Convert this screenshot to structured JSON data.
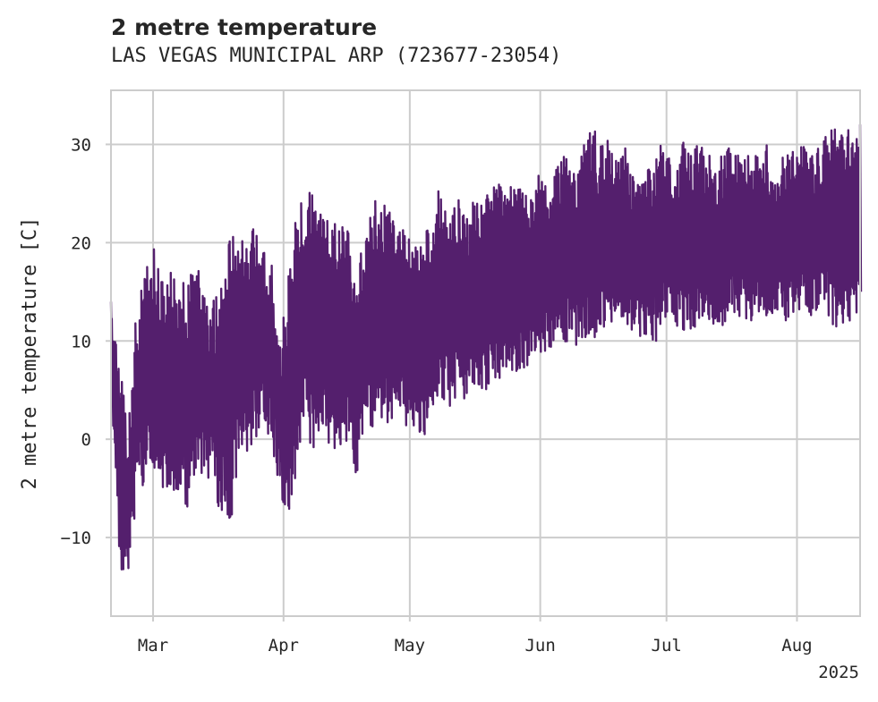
{
  "chart_data": {
    "type": "line",
    "title": "2 metre temperature",
    "subtitle": "LAS VEGAS MUNICIPAL ARP (723677-23054)",
    "ylabel": "2 metre temperature [C]",
    "xlabel": "",
    "x_range": [
      "2025-02-19",
      "2025-08-16"
    ],
    "ylim": [
      -18,
      35.5
    ],
    "x_ticks": [
      {
        "label": "Mar",
        "date": "2025-03-01"
      },
      {
        "label": "Apr",
        "date": "2025-04-01"
      },
      {
        "label": "May",
        "date": "2025-05-01"
      },
      {
        "label": "Jun",
        "date": "2025-06-01"
      },
      {
        "label": "Jul",
        "date": "2025-07-01"
      },
      {
        "label": "Aug",
        "date": "2025-08-01"
      }
    ],
    "x_offset_label": "2025",
    "y_ticks": [
      -10,
      0,
      10,
      20,
      30
    ],
    "grid": true,
    "line_color": "#541f6d",
    "series": [
      {
        "x": [
          "2025-02-19",
          "2025-02-21",
          "2025-02-23",
          "2025-02-25",
          "2025-02-27",
          "2025-03-01",
          "2025-03-03",
          "2025-03-05",
          "2025-03-07",
          "2025-03-09",
          "2025-03-11",
          "2025-03-13",
          "2025-03-15",
          "2025-03-17",
          "2025-03-19",
          "2025-03-21",
          "2025-03-23",
          "2025-03-25",
          "2025-03-27",
          "2025-03-29",
          "2025-03-31",
          "2025-04-02",
          "2025-04-04",
          "2025-04-06",
          "2025-04-08",
          "2025-04-10",
          "2025-04-12",
          "2025-04-14",
          "2025-04-16",
          "2025-04-18",
          "2025-04-20",
          "2025-04-22",
          "2025-04-24",
          "2025-04-26",
          "2025-04-28",
          "2025-04-30",
          "2025-05-02",
          "2025-05-04",
          "2025-05-06",
          "2025-05-08",
          "2025-05-10",
          "2025-05-12",
          "2025-05-14",
          "2025-05-16",
          "2025-05-18",
          "2025-05-20",
          "2025-05-22",
          "2025-05-24",
          "2025-05-26",
          "2025-05-28",
          "2025-05-30",
          "2025-06-01",
          "2025-06-03",
          "2025-06-05",
          "2025-06-07",
          "2025-06-09",
          "2025-06-11",
          "2025-06-13",
          "2025-06-15",
          "2025-06-17",
          "2025-06-19",
          "2025-06-21",
          "2025-06-23",
          "2025-06-25",
          "2025-06-27",
          "2025-06-29",
          "2025-07-01",
          "2025-07-03",
          "2025-07-05",
          "2025-07-07",
          "2025-07-09",
          "2025-07-11",
          "2025-07-13",
          "2025-07-15",
          "2025-07-17",
          "2025-07-19",
          "2025-07-21",
          "2025-07-23",
          "2025-07-25",
          "2025-07-27",
          "2025-07-29",
          "2025-07-31",
          "2025-08-02",
          "2025-08-04",
          "2025-08-06",
          "2025-08-08",
          "2025-08-10",
          "2025-08-12",
          "2025-08-14",
          "2025-08-16"
        ],
        "min": [
          3,
          -15,
          -13,
          -5,
          -5,
          -4,
          -5,
          -7,
          -6,
          -7,
          -3,
          -4,
          -5,
          -8,
          -9,
          -3,
          -2,
          0,
          2,
          -1,
          -6,
          -9,
          -2,
          2,
          -3,
          1,
          -3,
          -1,
          0,
          -4,
          1,
          0,
          2,
          1,
          3,
          1,
          1,
          0,
          3,
          3,
          3,
          4,
          3,
          4,
          5,
          5,
          6,
          7,
          6,
          7,
          8,
          9,
          8,
          10,
          9,
          9,
          9,
          10,
          10,
          12,
          11,
          10,
          11,
          10,
          10,
          10,
          12,
          11,
          11,
          11,
          12,
          12,
          11,
          12,
          13,
          12,
          12,
          13,
          12,
          13,
          12,
          13,
          13,
          12,
          13,
          12,
          11,
          11,
          11,
          15
        ],
        "max": [
          14,
          8,
          1,
          13,
          17,
          21,
          16,
          18,
          16,
          16,
          20,
          15,
          14,
          15,
          21,
          22,
          20,
          22,
          19,
          19,
          10,
          16,
          24,
          25,
          26,
          24,
          22,
          23,
          23,
          18,
          20,
          25,
          24,
          24,
          22,
          21,
          20,
          22,
          21,
          26,
          23,
          25,
          24,
          25,
          25,
          25,
          27,
          25,
          27,
          25,
          26,
          27,
          25,
          28,
          29,
          28,
          30,
          33,
          30,
          31,
          29,
          30,
          27,
          26,
          28,
          30,
          30,
          27,
          31,
          30,
          30,
          30,
          28,
          30,
          29,
          29,
          30,
          29,
          30,
          28,
          29,
          30,
          31,
          29,
          30,
          31,
          33,
          32,
          32,
          32
        ]
      }
    ]
  }
}
